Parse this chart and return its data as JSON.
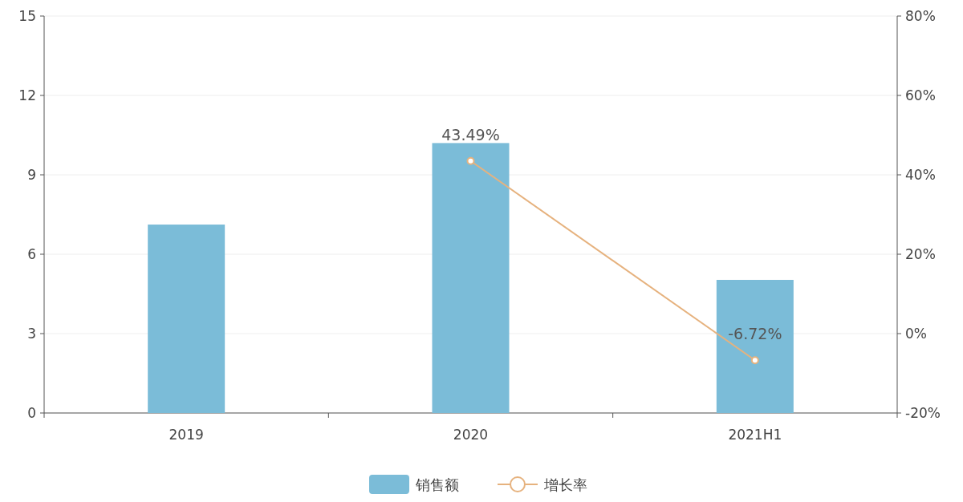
{
  "chart_data": {
    "type": "bar",
    "categories": [
      "2019",
      "2020",
      "2021H1"
    ],
    "series": [
      {
        "name": "销售额",
        "color": "#7bbcd8",
        "values": [
          7.12,
          10.2,
          5.03
        ]
      },
      {
        "name": "增长率",
        "type": "line",
        "axis": "y2",
        "color": "#e6b27e",
        "marker": "circle",
        "values": [
          null,
          43.49,
          -6.72
        ],
        "value_labels": [
          null,
          "43.49%",
          "-6.72%"
        ]
      }
    ],
    "ylim": [
      0,
      15
    ],
    "yticks": [
      0,
      3,
      6,
      9,
      12,
      15
    ],
    "y2lim": [
      -20,
      80
    ],
    "y2ticks": [
      {
        "value": -20,
        "label": "-20%"
      },
      {
        "value": 0,
        "label": "0%"
      },
      {
        "value": 20,
        "label": "20%"
      },
      {
        "value": 40,
        "label": "40%"
      },
      {
        "value": 60,
        "label": "60%"
      },
      {
        "value": 80,
        "label": "80%"
      }
    ],
    "grid": "y",
    "legend": "bottom"
  }
}
